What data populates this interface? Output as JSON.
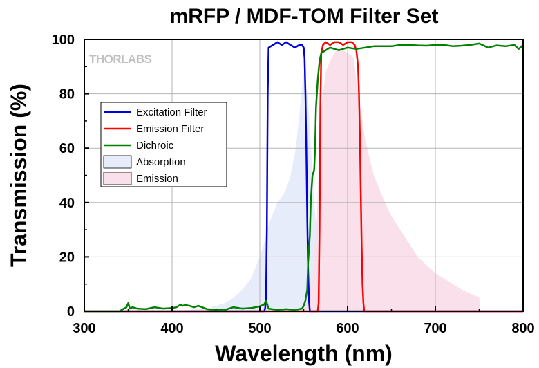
{
  "chart_data": {
    "type": "line",
    "title": "mRFP / MDF-TOM Filter Set",
    "xlabel": "Wavelength (nm)",
    "ylabel": "Transmission (%)",
    "xlim": [
      300,
      800
    ],
    "ylim": [
      0,
      100
    ],
    "xticks": [
      300,
      400,
      500,
      600,
      700,
      800
    ],
    "yticks": [
      0,
      20,
      40,
      60,
      80,
      100
    ],
    "grid": true,
    "legend_position": "upper-left",
    "watermark": "THORLABS",
    "series": [
      {
        "name": "Excitation Filter",
        "kind": "line",
        "color": "#0000dd",
        "x": [
          300,
          505,
          506,
          507,
          508,
          509,
          510,
          515,
          520,
          525,
          530,
          535,
          540,
          545,
          548,
          550,
          551,
          552,
          553,
          554,
          555,
          556,
          557,
          800
        ],
        "y": [
          0,
          0,
          1,
          4,
          30,
          80,
          97,
          98,
          99,
          98,
          99,
          98,
          97,
          98,
          98,
          97,
          93,
          80,
          60,
          35,
          15,
          4,
          0,
          0
        ]
      },
      {
        "name": "Emission Filter",
        "kind": "line",
        "color": "#ff0000",
        "x": [
          300,
          566,
          567,
          568,
          569,
          570,
          572,
          575,
          580,
          585,
          590,
          595,
          600,
          605,
          608,
          610,
          612,
          613,
          614,
          615,
          616,
          617,
          618,
          619,
          800
        ],
        "y": [
          0,
          0,
          3,
          30,
          75,
          95,
          98,
          99,
          98,
          99,
          99,
          98,
          99,
          99,
          98,
          96,
          90,
          80,
          65,
          45,
          25,
          10,
          3,
          0,
          0
        ]
      },
      {
        "name": "Dichroic",
        "kind": "line",
        "color": "#008000",
        "x": [
          300,
          340,
          345,
          348,
          350,
          352,
          355,
          360,
          370,
          380,
          390,
          400,
          405,
          410,
          412,
          415,
          420,
          425,
          430,
          440,
          450,
          460,
          470,
          480,
          490,
          500,
          505,
          507,
          510,
          520,
          530,
          540,
          548,
          550,
          552,
          554,
          555,
          557,
          558,
          559,
          560,
          562,
          563,
          564,
          566,
          568,
          570,
          575,
          580,
          590,
          600,
          610,
          620,
          630,
          640,
          650,
          660,
          670,
          680,
          690,
          700,
          710,
          720,
          730,
          740,
          750,
          760,
          770,
          780,
          790,
          795,
          800
        ],
        "y": [
          0,
          0,
          1,
          1.5,
          3,
          1,
          1.5,
          1,
          0.8,
          1.5,
          1,
          1.2,
          1.5,
          2.5,
          2,
          2.3,
          2,
          1.5,
          2,
          0.8,
          0.5,
          0.5,
          1.5,
          1,
          1.2,
          1.8,
          2.5,
          4,
          1,
          0.5,
          0.8,
          0.5,
          1,
          2,
          4,
          8,
          18,
          28,
          40,
          45,
          50,
          52,
          60,
          75,
          85,
          92,
          95,
          96,
          97,
          96,
          97,
          96.5,
          97,
          97.5,
          97.5,
          97.5,
          98,
          98,
          97.8,
          97.7,
          98,
          98,
          97.5,
          97.7,
          98,
          98.5,
          97,
          97.8,
          97.5,
          98,
          96.5,
          98
        ]
      },
      {
        "name": "Absorption",
        "kind": "area",
        "color": "#e6ecfa",
        "x": [
          400,
          420,
          440,
          450,
          460,
          470,
          480,
          490,
          500,
          505,
          510,
          515,
          520,
          525,
          530,
          535,
          540,
          542,
          545,
          548,
          550,
          552,
          555,
          558,
          560,
          562,
          565,
          570,
          575,
          580,
          585,
          590
        ],
        "y": [
          0,
          0.5,
          1,
          2,
          3,
          5,
          8,
          12,
          20,
          25,
          32,
          36,
          40,
          42,
          45,
          50,
          58,
          63,
          72,
          82,
          88,
          86,
          77,
          62,
          50,
          40,
          28,
          15,
          8,
          4,
          2,
          0.5
        ]
      },
      {
        "name": "Emission",
        "kind": "area",
        "color": "#fae0ea",
        "x": [
          540,
          550,
          555,
          560,
          565,
          570,
          575,
          580,
          585,
          590,
          595,
          600,
          605,
          607,
          610,
          615,
          620,
          630,
          640,
          650,
          660,
          670,
          680,
          690,
          700,
          710,
          720,
          730,
          740,
          750,
          751
        ],
        "y": [
          0,
          1,
          4,
          12,
          35,
          75,
          88,
          92,
          95,
          97,
          96,
          95,
          94,
          93,
          85,
          74,
          63,
          50,
          42,
          35,
          30,
          25,
          20,
          17,
          14,
          12,
          10,
          8,
          6.5,
          5,
          0
        ]
      }
    ]
  }
}
